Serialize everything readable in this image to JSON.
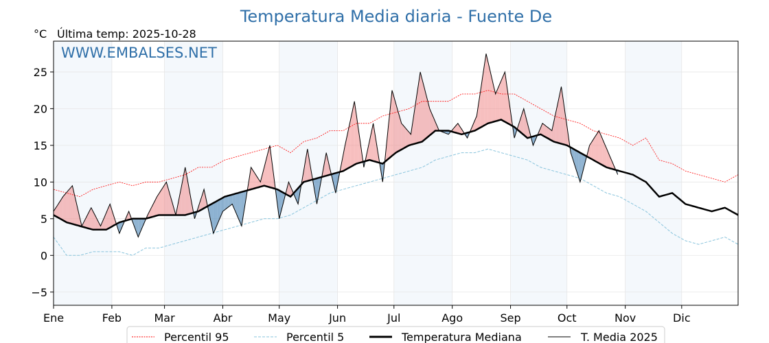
{
  "chart_data": {
    "type": "line",
    "title": "Temperatura Media diaria - Fuente De",
    "ylabel": "°C",
    "subtitle": "Última temp: 2025-10-28",
    "watermark": "WWW.EMBALSES.NET",
    "ylim": [
      -6.8,
      29.2
    ],
    "xlim_days": [
      0,
      364
    ],
    "yticks": [
      -5,
      0,
      5,
      10,
      15,
      20,
      25
    ],
    "months": [
      "Ene",
      "Feb",
      "Mar",
      "Abr",
      "May",
      "Jun",
      "Jul",
      "Ago",
      "Sep",
      "Oct",
      "Nov",
      "Dic"
    ],
    "month_start_days": [
      0,
      31,
      59,
      90,
      120,
      151,
      181,
      212,
      243,
      273,
      304,
      334
    ],
    "grid": true,
    "legend_position": "bottom-center",
    "colors": {
      "title": "#2f6fa8",
      "p95": "#ff0000",
      "p5": "#87c3dc",
      "above": "#f08080",
      "below": "#4682b4",
      "shade": "#f4f8fc"
    },
    "series": [
      {
        "name": "Percentil 95",
        "step_days": 7,
        "values": [
          9,
          8.5,
          8,
          9,
          9.5,
          10,
          9.5,
          10,
          10,
          10.5,
          11,
          12,
          12,
          13,
          13.5,
          14,
          14.5,
          15,
          14,
          15.5,
          16,
          17,
          17,
          18,
          18,
          19,
          19.5,
          20,
          21,
          21,
          21,
          22,
          22,
          22.5,
          22,
          22,
          21,
          20,
          19,
          18.5,
          18,
          17,
          16.5,
          16,
          15,
          16,
          13,
          12.5,
          11.5,
          11,
          10.5,
          10,
          11
        ]
      },
      {
        "name": "Percentil 5",
        "step_days": 7,
        "values": [
          2.5,
          0,
          0,
          0.5,
          0.5,
          0.5,
          0,
          1,
          1,
          1.5,
          2,
          2.5,
          3,
          3.5,
          4,
          4.5,
          5,
          5,
          5.5,
          6.5,
          7.5,
          8.5,
          9,
          9.5,
          10,
          10.5,
          11,
          11.5,
          12,
          13,
          13.5,
          14,
          14,
          14.5,
          14,
          13.5,
          13,
          12,
          11.5,
          11,
          10.5,
          9.5,
          8.5,
          8,
          7,
          6,
          4.5,
          3,
          2,
          1.5,
          2,
          2.5,
          1.5
        ]
      },
      {
        "name": "Temperatura Mediana",
        "step_days": 7,
        "values": [
          5.5,
          4.5,
          4,
          3.5,
          3.5,
          4.5,
          5,
          5,
          5.5,
          5.5,
          5.5,
          6,
          7,
          8,
          8.5,
          9,
          9.5,
          9,
          8,
          10,
          10.5,
          11,
          11.5,
          12.5,
          13,
          12.5,
          14,
          15,
          15.5,
          17,
          17,
          16.5,
          17,
          18,
          18.5,
          17.5,
          16,
          16.5,
          15.5,
          15,
          14,
          13,
          12,
          11.5,
          11,
          10,
          8,
          8.5,
          7,
          6.5,
          6,
          6.5,
          5.5
        ]
      },
      {
        "name": "T. Media 2025",
        "step_days": 5,
        "values": [
          6,
          8,
          9.5,
          4,
          6.5,
          4,
          7,
          3,
          6,
          2.5,
          5.5,
          8,
          10,
          5.5,
          12,
          5,
          9,
          3,
          6,
          7,
          4,
          12,
          10,
          15,
          5,
          10,
          7,
          14.5,
          7,
          14,
          8.5,
          15,
          21,
          12,
          18,
          10,
          22.5,
          18,
          16.5,
          25,
          20,
          17,
          16.5,
          18,
          16,
          19,
          27.5,
          22,
          25,
          16,
          20,
          15,
          18,
          17,
          23,
          14,
          10,
          15,
          17,
          14,
          11
        ]
      }
    ]
  }
}
